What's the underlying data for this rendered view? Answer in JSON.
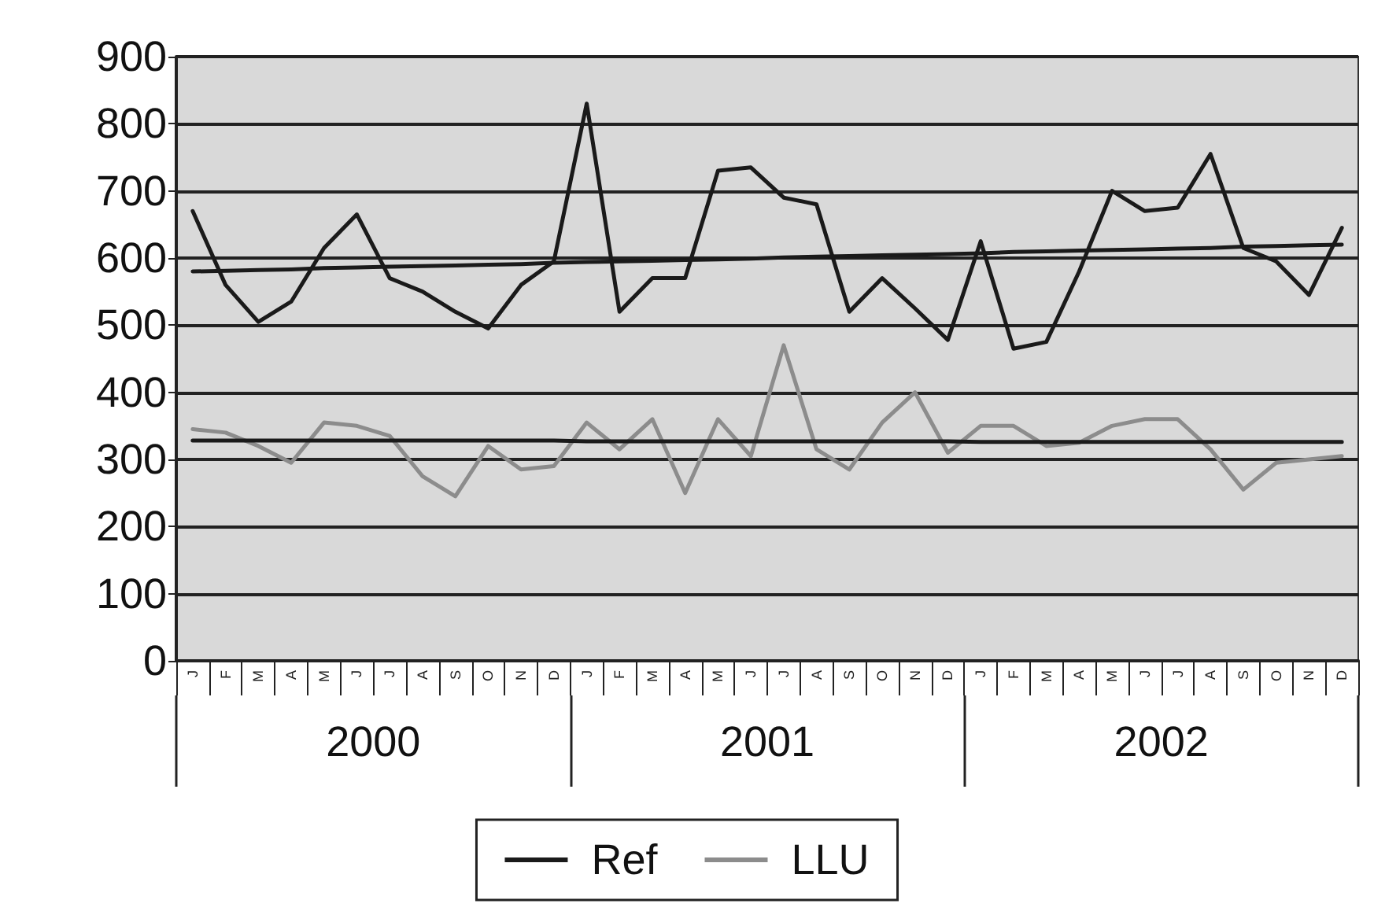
{
  "chart_data": {
    "type": "line",
    "categories": [
      "J",
      "F",
      "M",
      "A",
      "M",
      "J",
      "J",
      "A",
      "S",
      "O",
      "N",
      "D",
      "J",
      "F",
      "M",
      "A",
      "M",
      "J",
      "J",
      "A",
      "S",
      "O",
      "N",
      "D",
      "J",
      "F",
      "M",
      "A",
      "M",
      "J",
      "J",
      "A",
      "S",
      "O",
      "N",
      "D"
    ],
    "series": [
      {
        "name": "Ref",
        "color": "#1a1a1a",
        "values": [
          670,
          560,
          505,
          535,
          615,
          665,
          570,
          550,
          520,
          495,
          560,
          595,
          830,
          520,
          570,
          570,
          730,
          735,
          690,
          680,
          520,
          570,
          525,
          478,
          625,
          465,
          475,
          580,
          700,
          670,
          675,
          755,
          615,
          595,
          545,
          645
        ]
      },
      {
        "name": "LLU",
        "color": "#8c8c8c",
        "values": [
          345,
          340,
          320,
          295,
          355,
          350,
          335,
          275,
          245,
          320,
          285,
          290,
          355,
          315,
          360,
          250,
          360,
          305,
          470,
          315,
          285,
          355,
          400,
          310,
          350,
          350,
          320,
          325,
          350,
          360,
          360,
          315,
          255,
          295,
          300,
          305
        ]
      },
      {
        "color": "#1a1a1a",
        "values": [
          580,
          581,
          582,
          583,
          585,
          586,
          587,
          588,
          589,
          590,
          591,
          593,
          594,
          595,
          596,
          597,
          598,
          599,
          601,
          602,
          603,
          604,
          605,
          606,
          607,
          609,
          610,
          611,
          612,
          613,
          614,
          615,
          617,
          618,
          619,
          620
        ]
      },
      {
        "color": "#1a1a1a",
        "values": [
          328,
          328,
          328,
          328,
          328,
          328,
          328,
          328,
          328,
          328,
          328,
          328,
          327,
          327,
          327,
          327,
          327,
          327,
          327,
          327,
          327,
          327,
          327,
          327,
          326,
          326,
          326,
          326,
          326,
          326,
          326,
          326,
          326,
          326,
          326,
          326
        ]
      }
    ],
    "ylim": [
      0,
      900
    ],
    "yticks": [
      0,
      100,
      200,
      300,
      400,
      500,
      600,
      700,
      800,
      900
    ],
    "grid": "y",
    "legend": "bottom",
    "marker": "none",
    "line_style": "solid",
    "annotations": [
      "2000",
      "2001",
      "2002"
    ]
  }
}
